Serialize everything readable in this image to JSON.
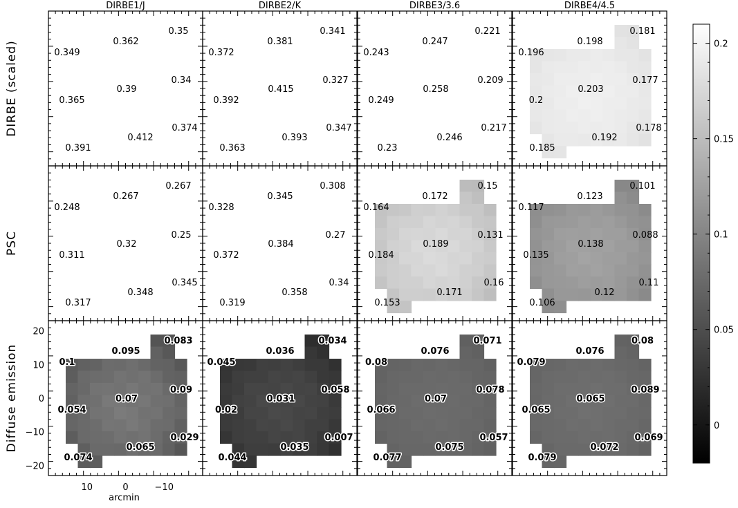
{
  "chart_data": {
    "type": "heatmap",
    "columns": [
      "DIRBE1/J",
      "DIRBE2/K",
      "DIRBE3/3.6",
      "DIRBE4/4.5"
    ],
    "rows": [
      "DIRBE (scaled)",
      "PSC",
      "Diffuse emission"
    ],
    "x_axis": {
      "label": "arcmin",
      "ticks": [
        "10",
        "0",
        "−10"
      ],
      "range": [
        20,
        -20
      ]
    },
    "y_axis": {
      "ticks": [
        "20",
        "10",
        "0",
        "−10",
        "−20"
      ],
      "range": [
        -23,
        23
      ]
    },
    "colorbar": {
      "range": [
        -0.02,
        0.21
      ],
      "ticks": [
        "0.2",
        "0.15",
        "0.1",
        "0.05",
        "0"
      ],
      "colormap": "grayscale (black low, white high)"
    },
    "panels": [
      {
        "row": 0,
        "col": 0,
        "level": 0.375,
        "values": [
          "0.349",
          "0.362",
          "0.35",
          "0.34",
          "0.365",
          "0.39",
          "0.374",
          "0.391",
          "0.412"
        ]
      },
      {
        "row": 0,
        "col": 1,
        "level": 0.378,
        "values": [
          "0.372",
          "0.381",
          "0.341",
          "0.327",
          "0.392",
          "0.415",
          "0.347",
          "0.363",
          "0.393"
        ]
      },
      {
        "row": 0,
        "col": 2,
        "level": 0.235,
        "values": [
          "0.243",
          "0.247",
          "0.221",
          "0.209",
          "0.249",
          "0.258",
          "0.217",
          "0.23",
          "0.246"
        ]
      },
      {
        "row": 0,
        "col": 3,
        "level": 0.19,
        "values": [
          "0.196",
          "0.198",
          "0.181",
          "0.177",
          "0.2",
          "0.203",
          "0.178",
          "0.185",
          "0.192"
        ]
      },
      {
        "row": 1,
        "col": 0,
        "level": 0.29,
        "values": [
          "0.248",
          "0.267",
          "0.267",
          "0.25",
          "0.311",
          "0.32",
          "0.345",
          "0.317",
          "0.348"
        ]
      },
      {
        "row": 1,
        "col": 1,
        "level": 0.345,
        "values": [
          "0.328",
          "0.345",
          "0.308",
          "0.27",
          "0.372",
          "0.384",
          "0.34",
          "0.319",
          "0.358"
        ]
      },
      {
        "row": 1,
        "col": 2,
        "level": 0.168,
        "values": [
          "0.164",
          "0.172",
          "0.15",
          "0.131",
          "0.184",
          "0.189",
          "0.16",
          "0.153",
          "0.171"
        ]
      },
      {
        "row": 1,
        "col": 3,
        "level": 0.12,
        "values": [
          "0.117",
          "0.123",
          "0.101",
          "0.088",
          "0.135",
          "0.138",
          "0.11",
          "0.106",
          "0.12"
        ]
      },
      {
        "row": 2,
        "col": 0,
        "level": 0.07,
        "values": [
          "0.1",
          "0.095",
          "0.083",
          "0.09",
          "0.054",
          "0.07",
          "0.029",
          "0.074",
          "0.065"
        ]
      },
      {
        "row": 2,
        "col": 1,
        "level": 0.035,
        "values": [
          "0.045",
          "0.036",
          "0.034",
          "0.058",
          "0.02",
          "0.031",
          "0.007",
          "0.044",
          "0.035"
        ]
      },
      {
        "row": 2,
        "col": 2,
        "level": 0.072,
        "values": [
          "0.08",
          "0.076",
          "0.071",
          "0.078",
          "0.066",
          "0.07",
          "0.057",
          "0.077",
          "0.075"
        ]
      },
      {
        "row": 2,
        "col": 3,
        "level": 0.075,
        "values": [
          "0.079",
          "0.076",
          "0.08",
          "0.089",
          "0.065",
          "0.065",
          "0.069",
          "0.079",
          "0.072"
        ]
      }
    ]
  }
}
